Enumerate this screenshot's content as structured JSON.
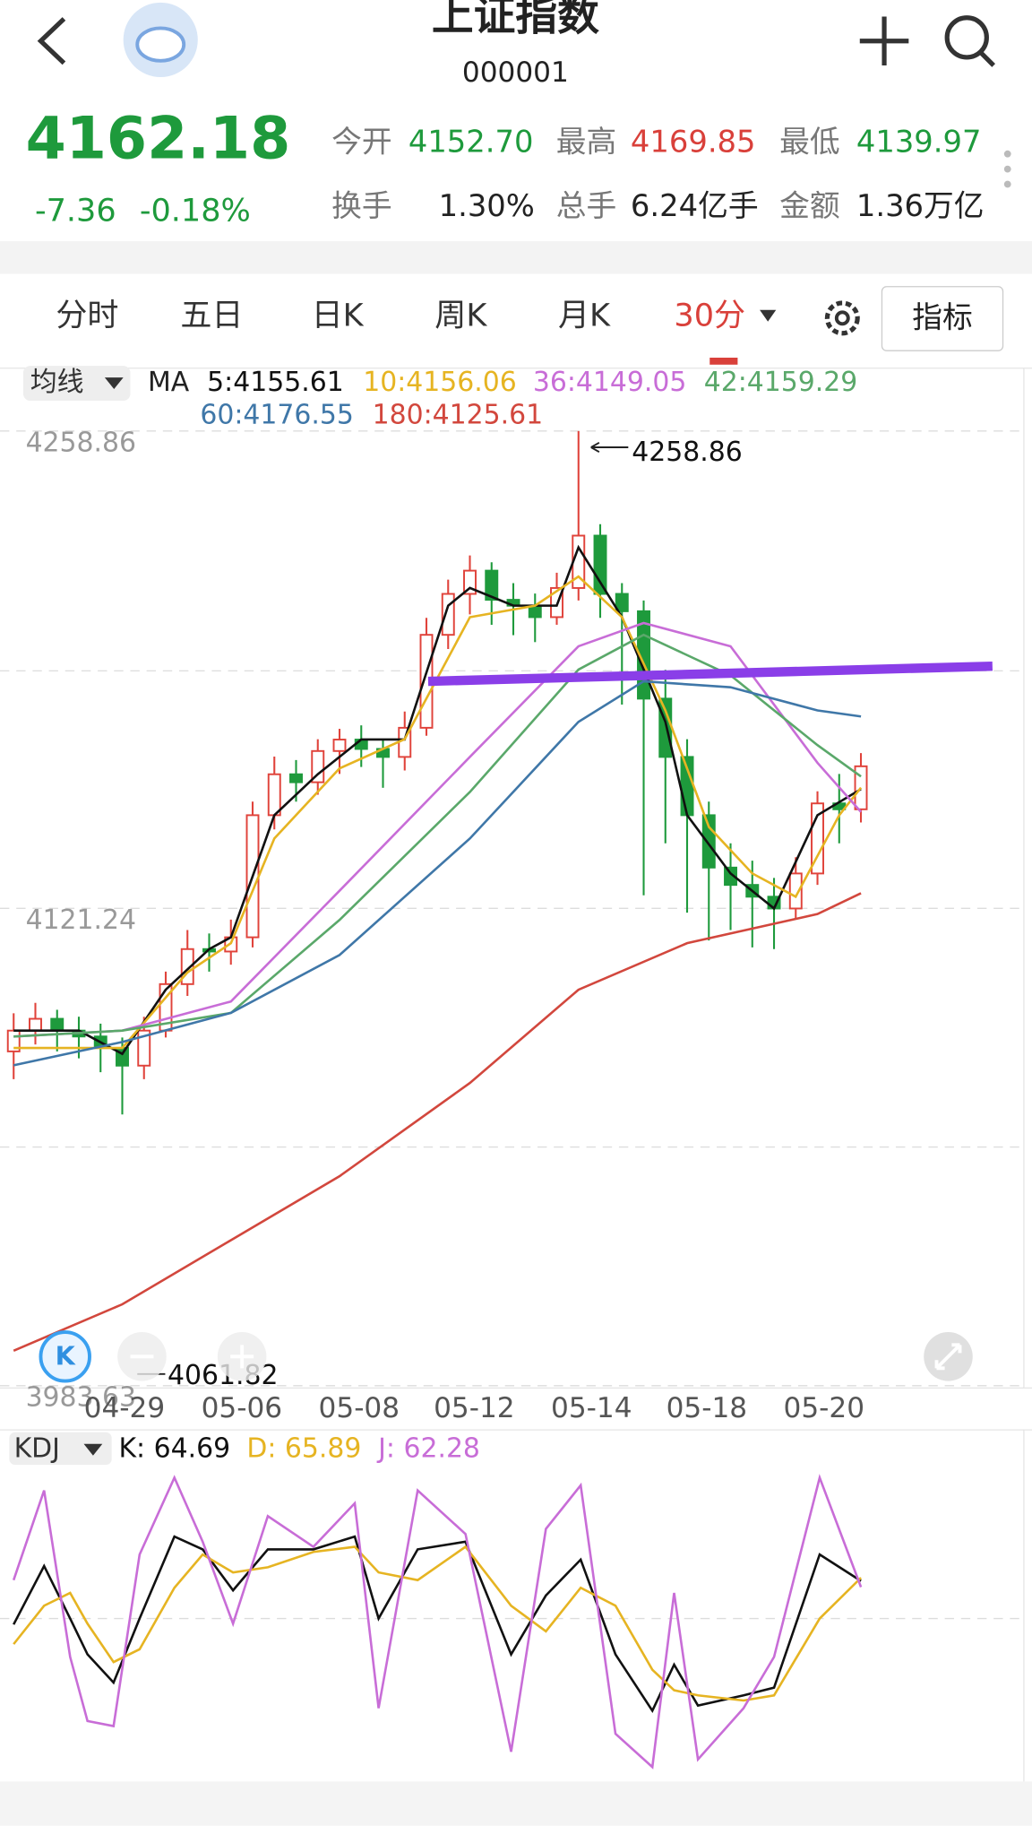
{
  "header": {
    "title": "上证指数",
    "code": "000001",
    "price": "4162.18",
    "change": "-7.36",
    "change_pct": "-0.18%",
    "stats": [
      {
        "label": "今开",
        "value": "4152.70",
        "color": "#1e9a3c"
      },
      {
        "label": "最高",
        "value": "4169.85",
        "color": "#d9403a"
      },
      {
        "label": "最低",
        "value": "4139.97",
        "color": "#1e9a3c"
      },
      {
        "label": "换手",
        "value": "1.30%",
        "color": "#222222"
      },
      {
        "label": "总手",
        "value": "6.24亿手",
        "color": "#222222"
      },
      {
        "label": "金额",
        "value": "1.36万亿",
        "color": "#222222"
      }
    ]
  },
  "tabs": [
    "分时",
    "五日",
    "日K",
    "周K",
    "月K",
    "30分"
  ],
  "active_tab": 5,
  "indicator_button": "指标",
  "chart": {
    "type": "candlestick",
    "ma_selector": "均线",
    "ma_label": "MA",
    "up_color": "#e0433b",
    "down_color": "#1e9a3c",
    "ylim": [
      3983.63,
      4258.86
    ],
    "yticks": [
      3983.63,
      4121.24,
      4258.86
    ],
    "xlim": [
      -0.2,
      46.5
    ],
    "xticks": [
      {
        "value": 5.1,
        "label": "04-29"
      },
      {
        "value": 10.5,
        "label": "05-06"
      },
      {
        "value": 15.9,
        "label": "05-08"
      },
      {
        "value": 21.2,
        "label": "05-12"
      },
      {
        "value": 26.6,
        "label": "05-14"
      },
      {
        "value": 31.9,
        "label": "05-18"
      },
      {
        "value": 37.3,
        "label": "05-20"
      }
    ],
    "annotations": {
      "high": "4258.86",
      "low": "4061.82"
    },
    "candles": [
      [
        4080.0,
        4091.0,
        4072.0,
        4086.0
      ],
      [
        4086.0,
        4094.0,
        4082.0,
        4089.4
      ],
      [
        4089.4,
        4092.0,
        4080.0,
        4086.0
      ],
      [
        4086.0,
        4090.0,
        4078.0,
        4084.3
      ],
      [
        4084.3,
        4088.0,
        4074.0,
        4081.0
      ],
      [
        4081.0,
        4084.0,
        4061.82,
        4075.9
      ],
      [
        4075.9,
        4090.0,
        4072.0,
        4086.0
      ],
      [
        4086.0,
        4103.0,
        4084.0,
        4099.4
      ],
      [
        4099.4,
        4115.0,
        4096.0,
        4109.5
      ],
      [
        4109.5,
        4114.0,
        4103.0,
        4108.8
      ],
      [
        4108.8,
        4118.0,
        4105.0,
        4112.9
      ],
      [
        4112.9,
        4152.0,
        4110.0,
        4148.1
      ],
      [
        4148.1,
        4165.0,
        4144.0,
        4159.9
      ],
      [
        4159.9,
        4164.0,
        4152.0,
        4157.6
      ],
      [
        4157.6,
        4170.0,
        4154.0,
        4166.6
      ],
      [
        4166.6,
        4173.0,
        4160.0,
        4169.9
      ],
      [
        4169.9,
        4174.0,
        4162.0,
        4167.2
      ],
      [
        4167.2,
        4170.0,
        4156.0,
        4164.9
      ],
      [
        4164.9,
        4178.0,
        4161.0,
        4173.3
      ],
      [
        4173.3,
        4205.0,
        4171.0,
        4200.1
      ],
      [
        4200.1,
        4216.0,
        4196.0,
        4211.9
      ],
      [
        4211.9,
        4223.0,
        4206.0,
        4218.6
      ],
      [
        4218.6,
        4221.0,
        4203.0,
        4210.2
      ],
      [
        4210.2,
        4215.0,
        4200.0,
        4208.5
      ],
      [
        4208.5,
        4212.0,
        4198.0,
        4205.2
      ],
      [
        4205.2,
        4218.0,
        4203.0,
        4213.6
      ],
      [
        4213.6,
        4258.86,
        4210.0,
        4228.7
      ],
      [
        4228.7,
        4232.0,
        4205.0,
        4211.9
      ],
      [
        4211.9,
        4215.0,
        4180.0,
        4206.9
      ],
      [
        4206.9,
        4210.0,
        4125.0,
        4181.7
      ],
      [
        4181.7,
        4190.0,
        4140.0,
        4164.9
      ],
      [
        4164.9,
        4170.0,
        4120.0,
        4148.1
      ],
      [
        4148.1,
        4152.0,
        4112.0,
        4133.0
      ],
      [
        4133.0,
        4140.0,
        4115.0,
        4128.0
      ],
      [
        4128.0,
        4135.0,
        4110.0,
        4124.6
      ],
      [
        4124.6,
        4130.0,
        4109.5,
        4121.2
      ],
      [
        4121.2,
        4136.0,
        4118.0,
        4131.3
      ],
      [
        4131.3,
        4155.0,
        4128.0,
        4151.5
      ],
      [
        4151.5,
        4160.0,
        4140.0,
        4149.8
      ],
      [
        4149.8,
        4166.0,
        4146.0,
        4162.2
      ]
    ],
    "ma_series": [
      {
        "name": "5",
        "legend": "5:4155.61",
        "color": "#111111",
        "x": [
          0,
          3,
          5,
          7,
          9,
          10,
          12,
          14,
          16,
          18,
          20,
          21,
          23,
          25,
          26,
          28,
          30,
          31,
          33,
          35,
          37,
          39
        ],
        "values": [
          4086.0,
          4086.0,
          4079.3,
          4097.8,
          4109.5,
          4112.9,
          4148.1,
          4159.9,
          4169.9,
          4169.9,
          4208.5,
          4213.6,
          4208.5,
          4208.5,
          4225.3,
          4205.2,
          4175.0,
          4148.1,
          4131.3,
          4121.2,
          4148.1,
          4155.61
        ]
      },
      {
        "name": "10",
        "legend": "10:4156.06",
        "color": "#e6b422",
        "x": [
          0,
          5,
          8,
          10,
          12,
          15,
          18,
          21,
          24,
          26,
          28,
          30,
          32,
          34,
          36,
          38,
          39
        ],
        "values": [
          4081.0,
          4081.0,
          4102.8,
          4111.2,
          4141.4,
          4161.6,
          4170.0,
          4205.2,
          4208.5,
          4216.9,
          4205.2,
          4178.3,
          4144.7,
          4131.3,
          4124.6,
          4148.1,
          4156.06
        ]
      },
      {
        "name": "36",
        "legend": "36:4149.05",
        "color": "#c86dd7",
        "x": [
          0,
          5,
          10,
          15,
          21,
          26,
          29,
          33,
          37,
          39
        ],
        "values": [
          4084.3,
          4086.0,
          4094.4,
          4126.3,
          4164.9,
          4196.8,
          4203.5,
          4196.8,
          4163.2,
          4149.05
        ]
      },
      {
        "name": "42",
        "legend": "42:4159.29",
        "color": "#5aa86a",
        "x": [
          0,
          5,
          10,
          15,
          21,
          26,
          29,
          33,
          37,
          39
        ],
        "values": [
          4084.3,
          4086.0,
          4091.1,
          4117.9,
          4154.8,
          4190.1,
          4200.1,
          4188.4,
          4168.3,
          4159.29
        ]
      },
      {
        "name": "60",
        "legend": "60:4176.55",
        "color": "#3f77a8",
        "x": [
          0,
          5,
          10,
          15,
          21,
          26,
          29,
          33,
          37,
          39
        ],
        "values": [
          4076.0,
          4082.7,
          4091.1,
          4107.8,
          4141.4,
          4175.0,
          4186.7,
          4185.0,
          4178.3,
          4176.55
        ]
      },
      {
        "name": "180",
        "legend": "180:4125.61",
        "color": "#d2473d",
        "x": [
          0,
          5,
          10,
          15,
          21,
          26,
          31,
          37,
          39
        ],
        "values": [
          3993.7,
          4007.1,
          4025.6,
          4044.0,
          4070.9,
          4097.8,
          4111.2,
          4119.6,
          4125.61
        ]
      }
    ]
  },
  "kdj": {
    "type": "line",
    "selector": "KDJ",
    "ylim": [
      -10,
      110
    ],
    "x": [
      0,
      1.4,
      2.6,
      3.4,
      4.6,
      5.8,
      7.4,
      8.7,
      10.1,
      11.7,
      13.8,
      15.7,
      16.8,
      18.6,
      20.8,
      22.9,
      24.5,
      26.1,
      27.7,
      29.4,
      30.4,
      31.5,
      33.6,
      35,
      37.1,
      39
    ],
    "series": [
      {
        "name": "K",
        "legend": "K: 64.69",
        "color": "#111111",
        "values": [
          47.7,
          70.5,
          50,
          36,
          25,
          50,
          82,
          77,
          61,
          77,
          77,
          82,
          50,
          77,
          80,
          36,
          59,
          73,
          36,
          14,
          32,
          16,
          20,
          23,
          75,
          64.69
        ]
      },
      {
        "name": "D",
        "legend": "D: 65.89",
        "color": "#e6b422",
        "values": [
          40,
          55,
          60,
          48,
          33,
          38,
          62,
          75,
          68,
          70,
          76,
          78,
          68,
          65,
          78,
          55,
          45,
          62,
          55,
          30,
          22,
          20,
          18,
          20,
          50,
          65.89
        ]
      },
      {
        "name": "J",
        "legend": "J: 62.28",
        "color": "#c86dd7",
        "values": [
          65,
          100,
          35,
          10,
          8,
          75,
          105,
          80,
          48,
          90,
          78,
          95,
          15,
          100,
          83,
          -2,
          85,
          102,
          5,
          -8,
          60,
          -5,
          15,
          35,
          105,
          62.28
        ]
      }
    ]
  }
}
